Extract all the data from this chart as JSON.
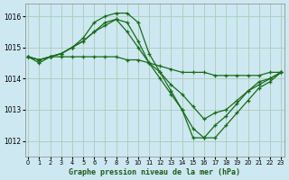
{
  "title": "Graphe pression niveau de la mer (hPa)",
  "background_color": "#cde8f0",
  "grid_color": "#aaccbb",
  "line_color": "#1a6b1a",
  "x_ticks": [
    0,
    1,
    2,
    3,
    4,
    5,
    6,
    7,
    8,
    9,
    10,
    11,
    12,
    13,
    14,
    15,
    16,
    17,
    18,
    19,
    20,
    21,
    22,
    23
  ],
  "y_ticks": [
    1012,
    1013,
    1014,
    1015,
    1016
  ],
  "ylim": [
    1011.5,
    1016.4
  ],
  "xlim": [
    -0.3,
    23.3
  ],
  "series": [
    [
      1014.7,
      1014.6,
      1014.7,
      1014.7,
      1014.7,
      1014.7,
      1014.7,
      1014.7,
      1014.7,
      1014.6,
      1014.6,
      1014.5,
      1014.4,
      1014.3,
      1014.2,
      1014.2,
      1014.2,
      1014.1,
      1014.1,
      1014.1,
      1014.1,
      1014.1,
      1014.2,
      1014.2
    ],
    [
      1014.7,
      1014.6,
      1014.7,
      1014.8,
      1015.0,
      1015.2,
      1015.5,
      1015.8,
      1015.9,
      1015.5,
      1015.0,
      1014.5,
      1014.2,
      1013.8,
      1013.5,
      1013.1,
      1012.7,
      1012.9,
      1013.0,
      1013.3,
      1013.6,
      1013.9,
      1014.0,
      1014.2
    ],
    [
      1014.7,
      1014.5,
      1014.7,
      1014.8,
      1015.0,
      1015.3,
      1015.8,
      1016.0,
      1016.1,
      1016.1,
      1015.8,
      1014.8,
      1014.2,
      1013.6,
      1013.0,
      1012.1,
      1012.1,
      1012.1,
      1012.5,
      1012.9,
      1013.3,
      1013.7,
      1013.9,
      1014.2
    ],
    [
      1014.7,
      1014.6,
      1014.7,
      1014.8,
      1015.0,
      1015.2,
      1015.5,
      1015.7,
      1015.9,
      1015.8,
      1015.2,
      1014.5,
      1014.0,
      1013.5,
      1013.0,
      1012.4,
      1012.1,
      1012.5,
      1012.8,
      1013.2,
      1013.6,
      1013.8,
      1014.0,
      1014.2
    ]
  ]
}
